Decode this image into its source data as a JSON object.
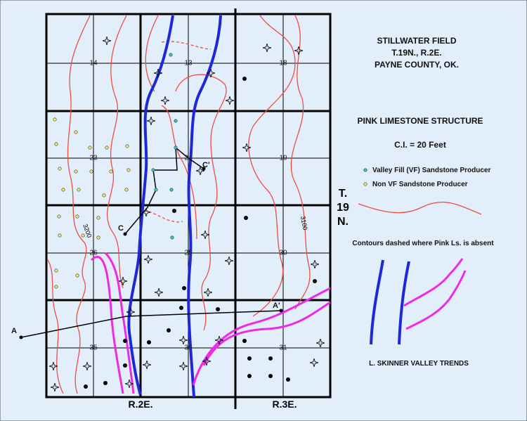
{
  "header": {
    "field": "STILLWATER FIELD",
    "township": "T.19N., R.2E.",
    "county": "PAYNE COUNTY, OK."
  },
  "structure": {
    "title": "PINK LIMESTONE STRUCTURE",
    "interval": "C.I. = 20 Feet"
  },
  "legend": {
    "vf": "Valley Fill (VF) Sandstone Producer",
    "non_vf": "Non VF Sandstone Producer",
    "dashed": "Contours dashed where Pink Ls. is absent",
    "trends": "L. SKINNER VALLEY TRENDS"
  },
  "township_label": [
    "T.",
    "19",
    "N."
  ],
  "ranges": [
    "R.2E.",
    "R.3E."
  ],
  "sections": [
    "14",
    "13",
    "18",
    "23",
    "24",
    "19",
    "26",
    "25",
    "30",
    "35",
    "36",
    "31"
  ],
  "contours": [
    "3200",
    "3100"
  ],
  "cross_sections": [
    "A",
    "A'",
    "C",
    "C'"
  ]
}
